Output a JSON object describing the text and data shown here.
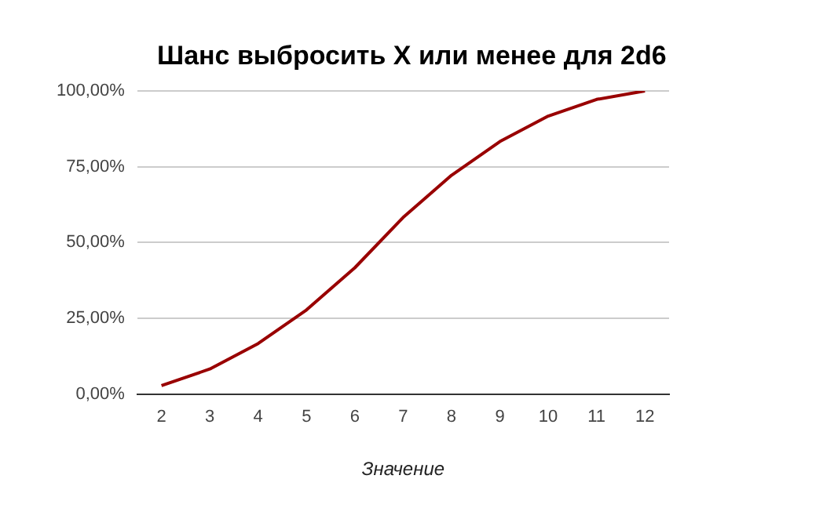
{
  "chart_data": {
    "type": "line",
    "title": "Шанс выбросить X или менее для 2d6",
    "xlabel": "Значение",
    "categories": [
      "2",
      "3",
      "4",
      "5",
      "6",
      "7",
      "8",
      "9",
      "10",
      "11",
      "12"
    ],
    "series": [
      {
        "color": "#990000",
        "values": [
          2.8,
          8.3,
          16.7,
          27.8,
          41.7,
          58.3,
          72.2,
          83.3,
          91.7,
          97.2,
          100
        ]
      }
    ],
    "ylim": [
      0,
      100
    ],
    "yticks": [
      {
        "value": 0,
        "label": "0,00%"
      },
      {
        "value": 25,
        "label": "25,00%"
      },
      {
        "value": 50,
        "label": "50,00%"
      },
      {
        "value": 75,
        "label": "75,00%"
      },
      {
        "value": 100,
        "label": "100,00%"
      }
    ],
    "grid": "y",
    "legend": false,
    "marker": "none",
    "line_style": "solid"
  }
}
